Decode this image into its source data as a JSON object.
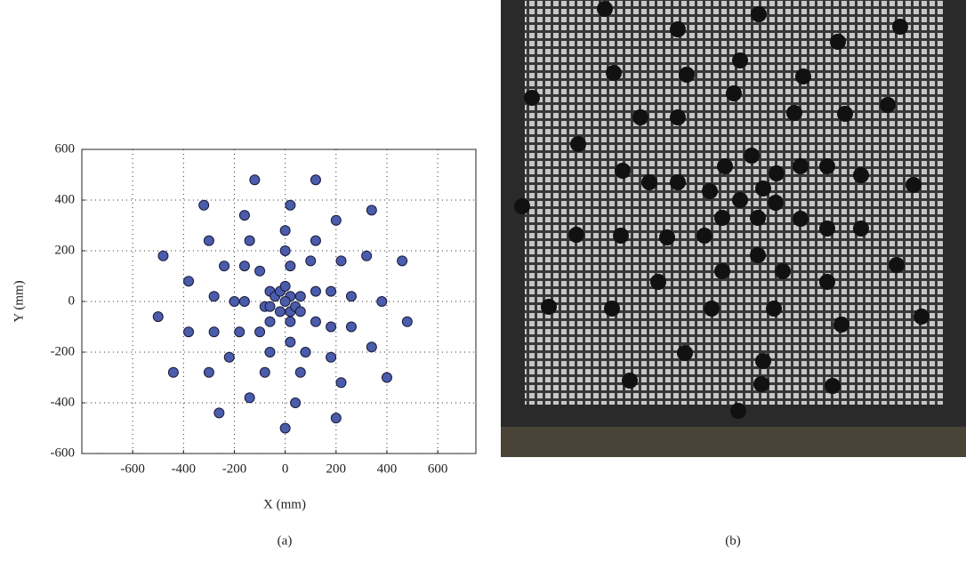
{
  "chart_data": {
    "type": "scatter",
    "xlabel": "X (mm)",
    "ylabel": "Y (mm)",
    "xlim": [
      -800,
      750
    ],
    "ylim": [
      -600,
      600
    ],
    "xticks": [
      -600,
      -400,
      -200,
      0,
      200,
      400,
      600
    ],
    "yticks": [
      -600,
      -400,
      -200,
      0,
      200,
      400,
      600
    ],
    "grid": true,
    "color": "#4a5cab",
    "x": [
      -120,
      120,
      -320,
      20,
      340,
      -160,
      200,
      -300,
      -140,
      0,
      120,
      -480,
      -240,
      -160,
      -100,
      0,
      20,
      100,
      220,
      320,
      460,
      -380,
      -280,
      -200,
      -160,
      -60,
      -40,
      -20,
      0,
      20,
      60,
      120,
      180,
      260,
      380,
      -80,
      -60,
      -20,
      0,
      20,
      40,
      60,
      -500,
      -60,
      20,
      120,
      180,
      260,
      480,
      -380,
      -280,
      -180,
      -100,
      20,
      -220,
      -60,
      80,
      180,
      340,
      -440,
      -300,
      -80,
      60,
      400,
      220,
      -140,
      40,
      -260,
      200,
      0
    ],
    "values": [
      480,
      480,
      380,
      380,
      360,
      340,
      320,
      240,
      240,
      280,
      240,
      180,
      140,
      140,
      120,
      200,
      140,
      160,
      160,
      180,
      160,
      80,
      20,
      0,
      0,
      40,
      20,
      40,
      60,
      20,
      20,
      40,
      40,
      20,
      0,
      -20,
      -20,
      -40,
      0,
      -40,
      -20,
      -40,
      -60,
      -80,
      -80,
      -80,
      -100,
      -100,
      -80,
      -120,
      -120,
      -120,
      -120,
      -160,
      -220,
      -200,
      -200,
      -220,
      -180,
      -280,
      -280,
      -280,
      -280,
      -300,
      -320,
      -380,
      -400,
      -440,
      -460,
      -500
    ]
  },
  "panel_labels": [
    "(a)",
    "(b)"
  ]
}
